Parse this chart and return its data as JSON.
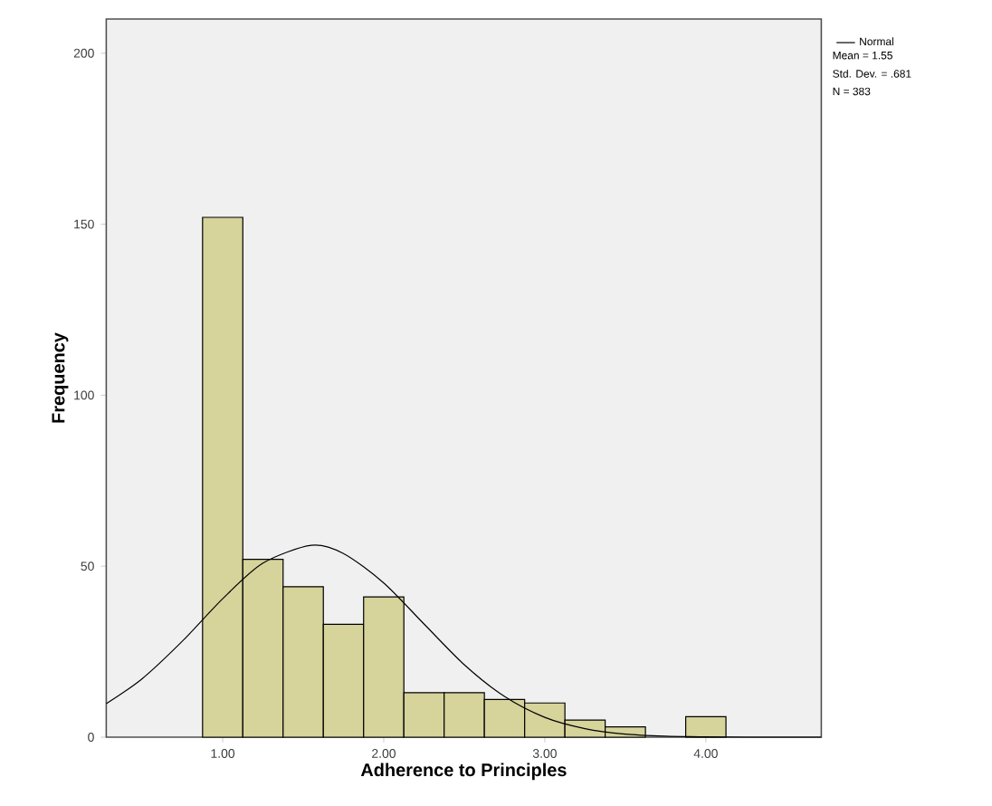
{
  "chart_data": {
    "type": "histogram",
    "xlabel": "Adherence to Principles",
    "ylabel": "Frequency",
    "xlim": [
      0.277,
      4.717
    ],
    "ylim": [
      0,
      210
    ],
    "xticks": [
      {
        "value": 1,
        "label": "1.00"
      },
      {
        "value": 2,
        "label": "2.00"
      },
      {
        "value": 3,
        "label": "3.00"
      },
      {
        "value": 4,
        "label": "4.00"
      }
    ],
    "yticks": [
      0,
      50,
      100,
      150,
      200
    ],
    "legend": "top right",
    "series": [
      {
        "color": "#d6d39b",
        "bins": [
          0.875,
          1.125,
          1.375,
          1.625,
          1.875,
          2.125,
          2.375,
          2.625,
          2.875,
          3.125,
          3.375,
          3.625,
          3.875,
          4.125
        ],
        "values": [
          152,
          52,
          44,
          33,
          41,
          13,
          13,
          11,
          10,
          5,
          3,
          0,
          6
        ]
      },
      {
        "type": "line",
        "name": "Normal",
        "color": "#000000",
        "x": [
          0.277,
          0.5,
          0.75,
          1.0,
          1.25,
          1.55,
          1.75,
          2.0,
          2.25,
          2.5,
          2.75,
          3.0,
          3.25,
          3.5,
          3.75,
          4.0,
          4.25,
          4.717
        ],
        "values": [
          9.8,
          17.1,
          28.1,
          40.5,
          50.9,
          56.1,
          53.7,
          45.1,
          33.1,
          21.2,
          11.9,
          5.8,
          2.5,
          0.9,
          0.3,
          0.1,
          0,
          0
        ]
      }
    ],
    "annotations": [
      "Mean = 1.55",
      "Std. Dev. = .681",
      "N = 383"
    ]
  }
}
